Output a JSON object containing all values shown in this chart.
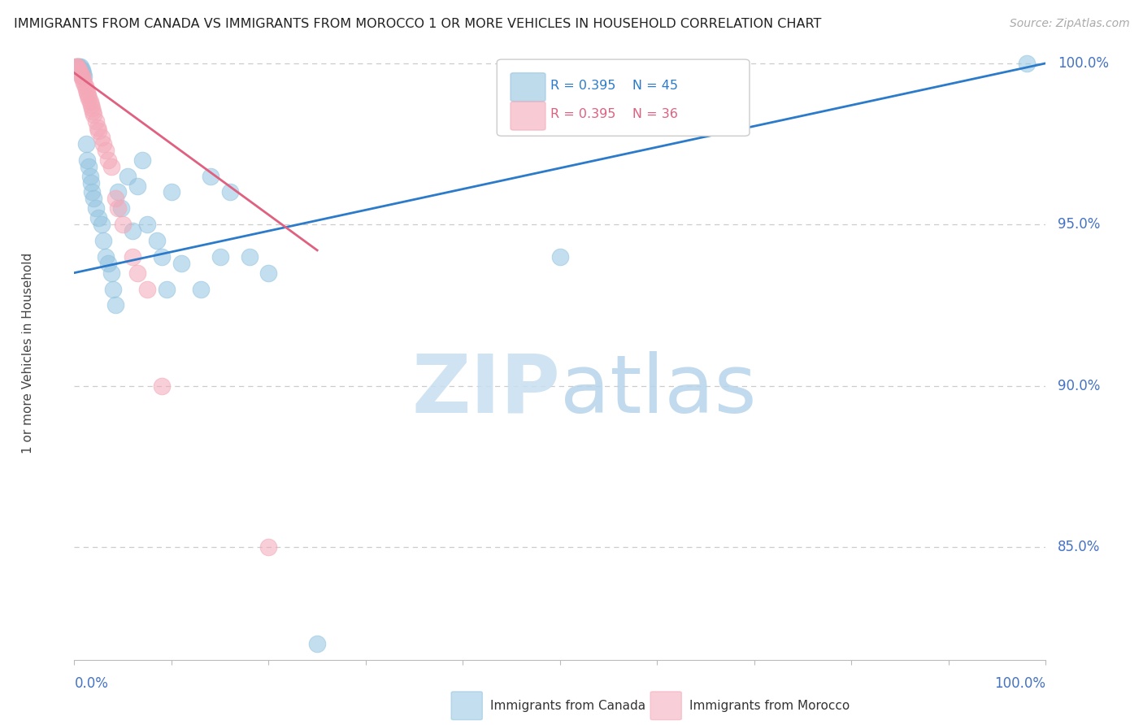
{
  "title": "IMMIGRANTS FROM CANADA VS IMMIGRANTS FROM MOROCCO 1 OR MORE VEHICLES IN HOUSEHOLD CORRELATION CHART",
  "source": "Source: ZipAtlas.com",
  "ylabel": "1 or more Vehicles in Household",
  "ytick_labels": [
    "100.0%",
    "95.0%",
    "90.0%",
    "85.0%"
  ],
  "ytick_values": [
    1.0,
    0.95,
    0.9,
    0.85
  ],
  "xlim": [
    0.0,
    1.0
  ],
  "ylim": [
    0.815,
    1.005
  ],
  "legend_blue_r": "R = 0.395",
  "legend_blue_n": "N = 45",
  "legend_pink_r": "R = 0.395",
  "legend_pink_n": "N = 36",
  "legend_blue_label": "Immigrants from Canada",
  "legend_pink_label": "Immigrants from Morocco",
  "blue_color": "#93c4e0",
  "pink_color": "#f4a8b8",
  "blue_line_color": "#2b7bca",
  "pink_line_color": "#e06080",
  "watermark_zip": "ZIP",
  "watermark_atlas": "atlas",
  "title_color": "#222222",
  "axis_label_color": "#4472c4",
  "grid_color": "#cccccc",
  "canada_x": [
    0.003,
    0.004,
    0.005,
    0.006,
    0.007,
    0.008,
    0.009,
    0.01,
    0.012,
    0.013,
    0.015,
    0.016,
    0.017,
    0.018,
    0.02,
    0.022,
    0.025,
    0.028,
    0.03,
    0.032,
    0.035,
    0.038,
    0.04,
    0.042,
    0.045,
    0.048,
    0.055,
    0.06,
    0.065,
    0.07,
    0.075,
    0.085,
    0.09,
    0.095,
    0.1,
    0.11,
    0.13,
    0.14,
    0.15,
    0.16,
    0.18,
    0.2,
    0.25,
    0.5,
    0.98
  ],
  "canada_y": [
    0.999,
    0.999,
    0.999,
    0.999,
    0.998,
    0.998,
    0.997,
    0.996,
    0.975,
    0.97,
    0.968,
    0.965,
    0.963,
    0.96,
    0.958,
    0.955,
    0.952,
    0.95,
    0.945,
    0.94,
    0.938,
    0.935,
    0.93,
    0.925,
    0.96,
    0.955,
    0.965,
    0.948,
    0.962,
    0.97,
    0.95,
    0.945,
    0.94,
    0.93,
    0.96,
    0.938,
    0.93,
    0.965,
    0.94,
    0.96,
    0.94,
    0.935,
    0.82,
    0.94,
    1.0
  ],
  "morocco_x": [
    0.001,
    0.002,
    0.003,
    0.004,
    0.005,
    0.006,
    0.007,
    0.008,
    0.009,
    0.01,
    0.011,
    0.012,
    0.013,
    0.014,
    0.015,
    0.016,
    0.017,
    0.018,
    0.019,
    0.02,
    0.022,
    0.024,
    0.025,
    0.028,
    0.03,
    0.032,
    0.035,
    0.038,
    0.042,
    0.045,
    0.05,
    0.06,
    0.065,
    0.075,
    0.09,
    0.2
  ],
  "morocco_y": [
    0.999,
    0.999,
    0.999,
    0.998,
    0.998,
    0.997,
    0.996,
    0.996,
    0.995,
    0.994,
    0.993,
    0.992,
    0.991,
    0.99,
    0.989,
    0.988,
    0.987,
    0.986,
    0.985,
    0.984,
    0.982,
    0.98,
    0.979,
    0.977,
    0.975,
    0.973,
    0.97,
    0.968,
    0.958,
    0.955,
    0.95,
    0.94,
    0.935,
    0.93,
    0.9,
    0.85
  ],
  "blue_trendline_x": [
    0.0,
    1.0
  ],
  "blue_trendline_y": [
    0.935,
    1.0
  ],
  "pink_trendline_x": [
    0.0,
    0.25
  ],
  "pink_trendline_y": [
    0.997,
    0.942
  ]
}
